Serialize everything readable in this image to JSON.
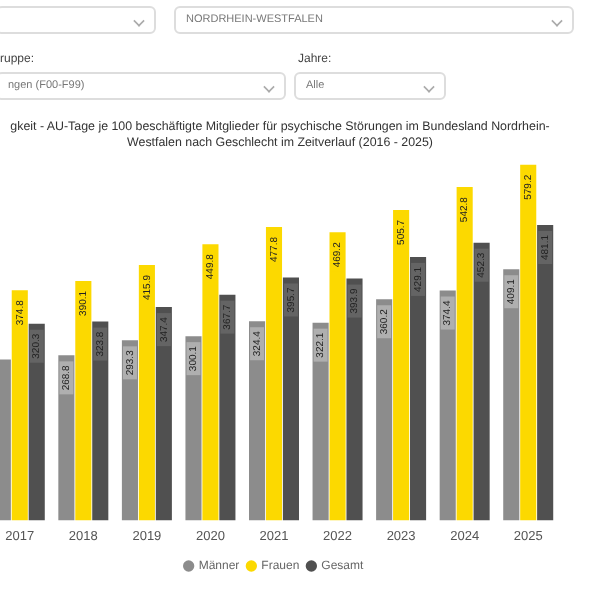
{
  "chart_data": {
    "type": "bar",
    "title": "gkeit - AU-Tage je 100 beschäftigte Mitglieder für psychische Störungen im Bundesland Nordrhein-Westfalen nach Geschlecht im Zeitverlauf (2016 - 2025)",
    "annotations": [
      "NORDRHEIN-WESTFALEN",
      "ruppe:",
      "ngen (F00-F99)",
      "Jahre:",
      "Alle"
    ],
    "categories": [
      "2017",
      "2018",
      "2019",
      "2020",
      "2021",
      "2022",
      "2023",
      "2024",
      "2025"
    ],
    "series": [
      {
        "name": "Männer",
        "color": "#8c8c8c",
        "values": [
          262,
          268.8,
          293.3,
          300.1,
          324.4,
          322.1,
          360.2,
          374.4,
          409.1
        ],
        "value_labels": [
          null,
          "268.8",
          "293.3",
          "300.1",
          "324.4",
          "322.1",
          "360.2",
          "374.4",
          "409.1"
        ]
      },
      {
        "name": "Frauen",
        "color": "#fcd900",
        "values": [
          374.8,
          390.1,
          415.9,
          449.8,
          477.8,
          469.2,
          505.7,
          542.8,
          579.2
        ],
        "value_labels": [
          "374.8",
          "390.1",
          "415.9",
          "449.8",
          "477.8",
          "469.2",
          "505.7",
          "542.8",
          "579.2"
        ]
      },
      {
        "name": "Gesamt",
        "color": "#505050",
        "values": [
          320.3,
          323.8,
          347.4,
          367.7,
          395.7,
          393.9,
          429.1,
          452.3,
          481.1
        ],
        "value_labels": [
          "320.3",
          "323.8",
          "347.4",
          "367.7",
          "395.7",
          "393.9",
          "429.1",
          "452.3",
          "481.1"
        ]
      }
    ],
    "grid": false,
    "legend": "bottom"
  }
}
